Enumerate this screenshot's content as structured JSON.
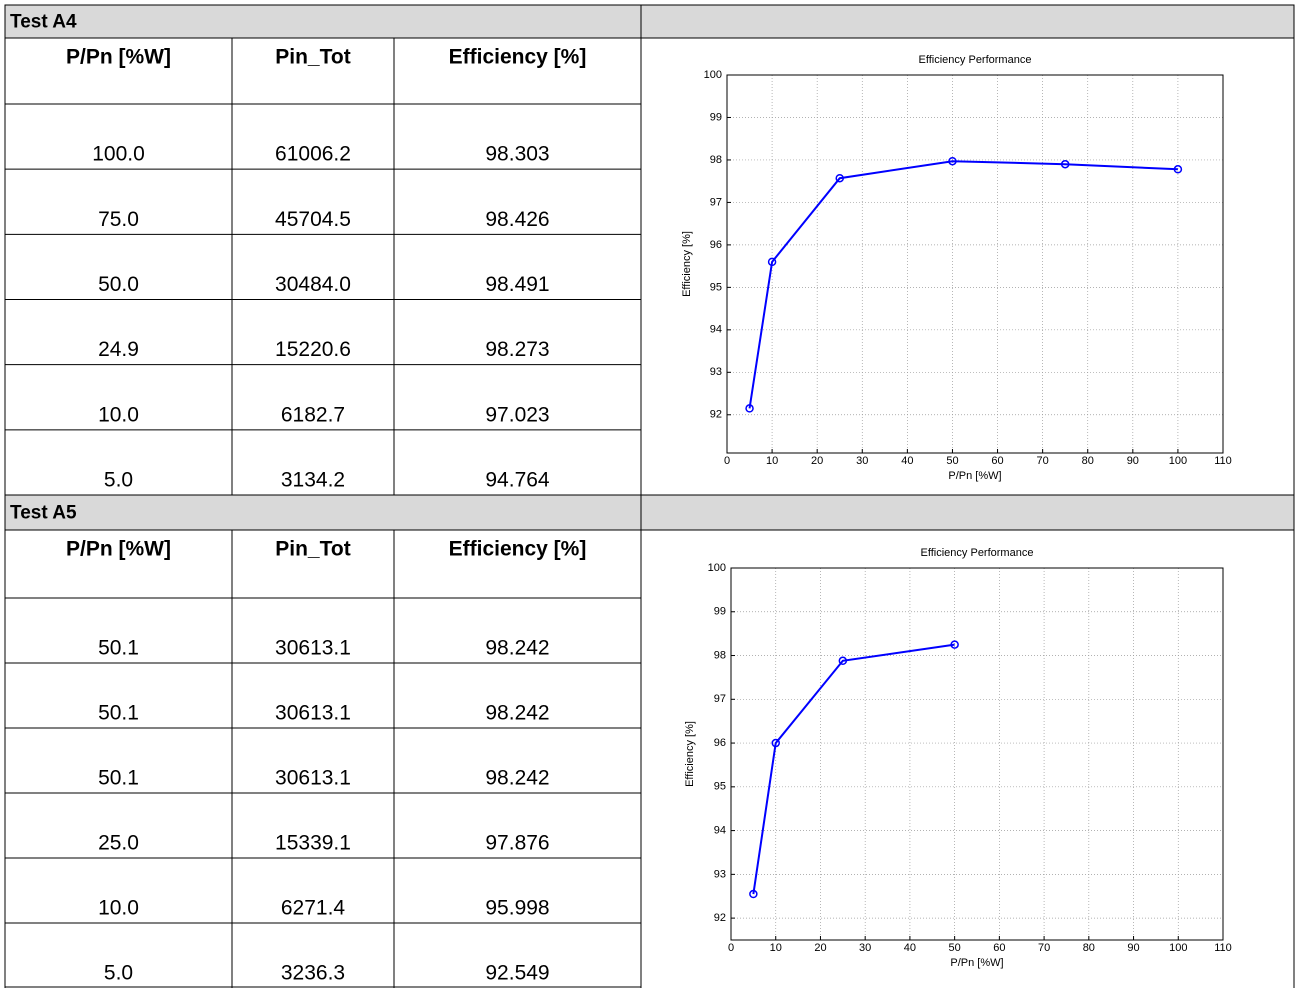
{
  "sections": [
    {
      "title": "Test A4",
      "columns": [
        "P/Pn [%W]",
        "Pin_Tot",
        "Efficiency [%]"
      ],
      "rows": [
        [
          "100.0",
          "61006.2",
          "98.303"
        ],
        [
          "75.0",
          "45704.5",
          "98.426"
        ],
        [
          "50.0",
          "30484.0",
          "98.491"
        ],
        [
          "24.9",
          "15220.6",
          "98.273"
        ],
        [
          "10.0",
          "6182.7",
          "97.023"
        ],
        [
          "5.0",
          "3134.2",
          "94.764"
        ]
      ]
    },
    {
      "title": "Test A5",
      "columns": [
        "P/Pn [%W]",
        "Pin_Tot",
        "Efficiency [%]"
      ],
      "rows": [
        [
          "50.1",
          "30613.1",
          "98.242"
        ],
        [
          "50.1",
          "30613.1",
          "98.242"
        ],
        [
          "50.1",
          "30613.1",
          "98.242"
        ],
        [
          "25.0",
          "15339.1",
          "97.876"
        ],
        [
          "10.0",
          "6271.4",
          "95.998"
        ],
        [
          "5.0",
          "3236.3",
          "92.549"
        ]
      ]
    }
  ],
  "chart_data": [
    {
      "type": "line",
      "title": "Efficiency Performance",
      "x_label": "P/Pn [%W]",
      "y_label": "Efficiency [%]",
      "x": [
        5,
        10,
        25,
        50,
        75,
        100
      ],
      "series": [
        {
          "color": "#0000ff",
          "values": [
            92.15,
            95.6,
            97.57,
            97.97,
            97.9,
            97.78
          ]
        }
      ],
      "xlim": [
        0,
        110
      ],
      "xticks": [
        0,
        10,
        20,
        30,
        40,
        50,
        60,
        70,
        80,
        90,
        100,
        110
      ],
      "ylim": [
        91.1,
        100
      ],
      "yticks": [
        92,
        93,
        94,
        95,
        96,
        97,
        98,
        99,
        100
      ],
      "grid": true
    },
    {
      "type": "line",
      "title": "Efficiency Performance",
      "x_label": "P/Pn [%W]",
      "y_label": "Efficiency [%]",
      "x": [
        5,
        10,
        25,
        50
      ],
      "series": [
        {
          "color": "#0000ff",
          "values": [
            92.55,
            96.0,
            97.88,
            98.25
          ]
        }
      ],
      "xlim": [
        0,
        110
      ],
      "xticks": [
        0,
        10,
        20,
        30,
        40,
        50,
        60,
        70,
        80,
        90,
        100,
        110
      ],
      "ylim": [
        91.5,
        100
      ],
      "yticks": [
        92,
        93,
        94,
        95,
        96,
        97,
        98,
        99,
        100
      ],
      "grid": true
    }
  ]
}
